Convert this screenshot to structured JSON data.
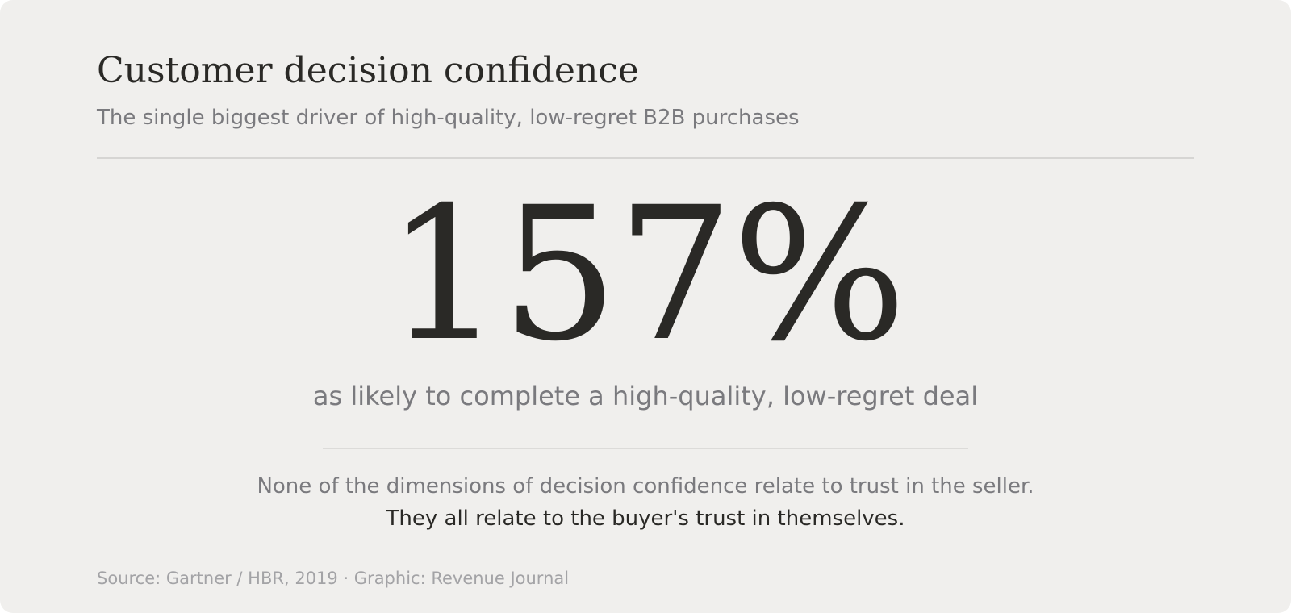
{
  "header": {
    "title": "Customer decision confidence",
    "subtitle": "The single biggest driver of high-quality, low-regret B2B purchases"
  },
  "stat": {
    "value": "157%",
    "caption": "as likely to complete a high-quality, low-regret deal"
  },
  "note": {
    "line1": "None of the dimensions of decision confidence relate to trust in the seller.",
    "line2": "They all relate to the buyer's trust in themselves."
  },
  "footer": {
    "source": "Source: Gartner / HBR, 2019 · Graphic: Revenue Journal"
  },
  "colors": {
    "background": "#f0efed",
    "ink": "#2a2926",
    "muted": "#7a7a7e",
    "faint": "#a3a3a6",
    "rule": "#d6d5d3"
  }
}
